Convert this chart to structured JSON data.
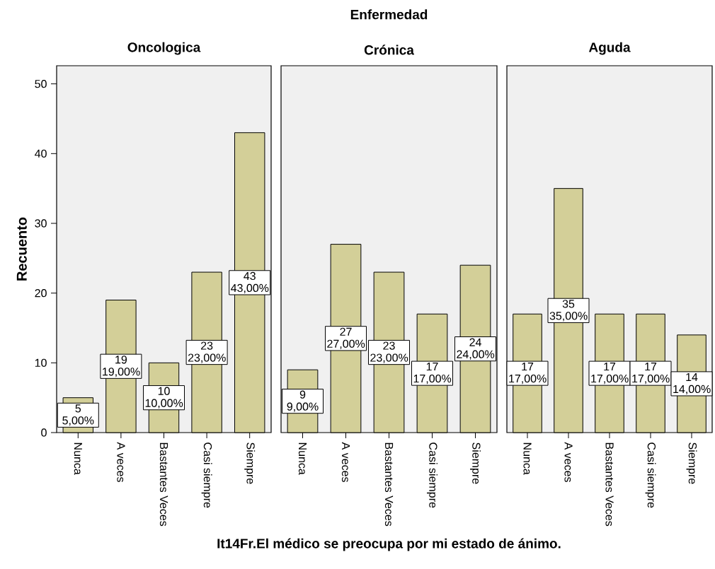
{
  "chart_data": [
    {
      "type": "bar",
      "title": "Oncologica",
      "ylabel": "Recuento",
      "categories": [
        "Nunca",
        "A veces",
        "Bastantes Veces",
        "Casi siempre",
        "Siempre"
      ],
      "values": [
        5,
        19,
        10,
        23,
        43
      ],
      "value_labels": [
        "5 5,00%",
        "19 19,00%",
        "10 10,00%",
        "23 23,00%",
        "43 43,00%"
      ],
      "color": "#d3cf98",
      "ylim": [
        0,
        52.6
      ],
      "yticks": [
        0,
        10,
        20,
        30,
        40,
        50
      ],
      "grid": false
    },
    {
      "type": "bar",
      "title": "Crónica",
      "annotations": [
        "Enfermedad"
      ],
      "xlabel": "It14Fr.El médico se preocupa por mi estado de ánimo.",
      "categories": [
        "Nunca",
        "A veces",
        "Bastantes Veces",
        "Casi siempre",
        "Siempre"
      ],
      "values": [
        9,
        27,
        23,
        17,
        24
      ],
      "value_labels": [
        "9 9,00%",
        "27 27,00%",
        "23 23,00%",
        "17 17,00%",
        "24 24,00%"
      ],
      "color": "#d3cf98",
      "ylim": [
        0,
        52.6
      ],
      "yticks": [
        0,
        10,
        20,
        30,
        40,
        50
      ],
      "tick_labels": "x",
      "grid": false
    },
    {
      "type": "bar",
      "title": "Aguda",
      "categories": [
        "Nunca",
        "A veces",
        "Bastantes Veces",
        "Casi siempre",
        "Siempre"
      ],
      "values": [
        17,
        35,
        17,
        17,
        14
      ],
      "value_labels": [
        "17 17,00%",
        "35 35,00%",
        "17 17,00%",
        "17 17,00%",
        "14 14,00%"
      ],
      "color": "#d3cf98",
      "ylim": [
        0,
        52.6
      ],
      "yticks": [
        0,
        10,
        20,
        30,
        40,
        50
      ],
      "tick_labels": "x",
      "grid": false
    }
  ]
}
